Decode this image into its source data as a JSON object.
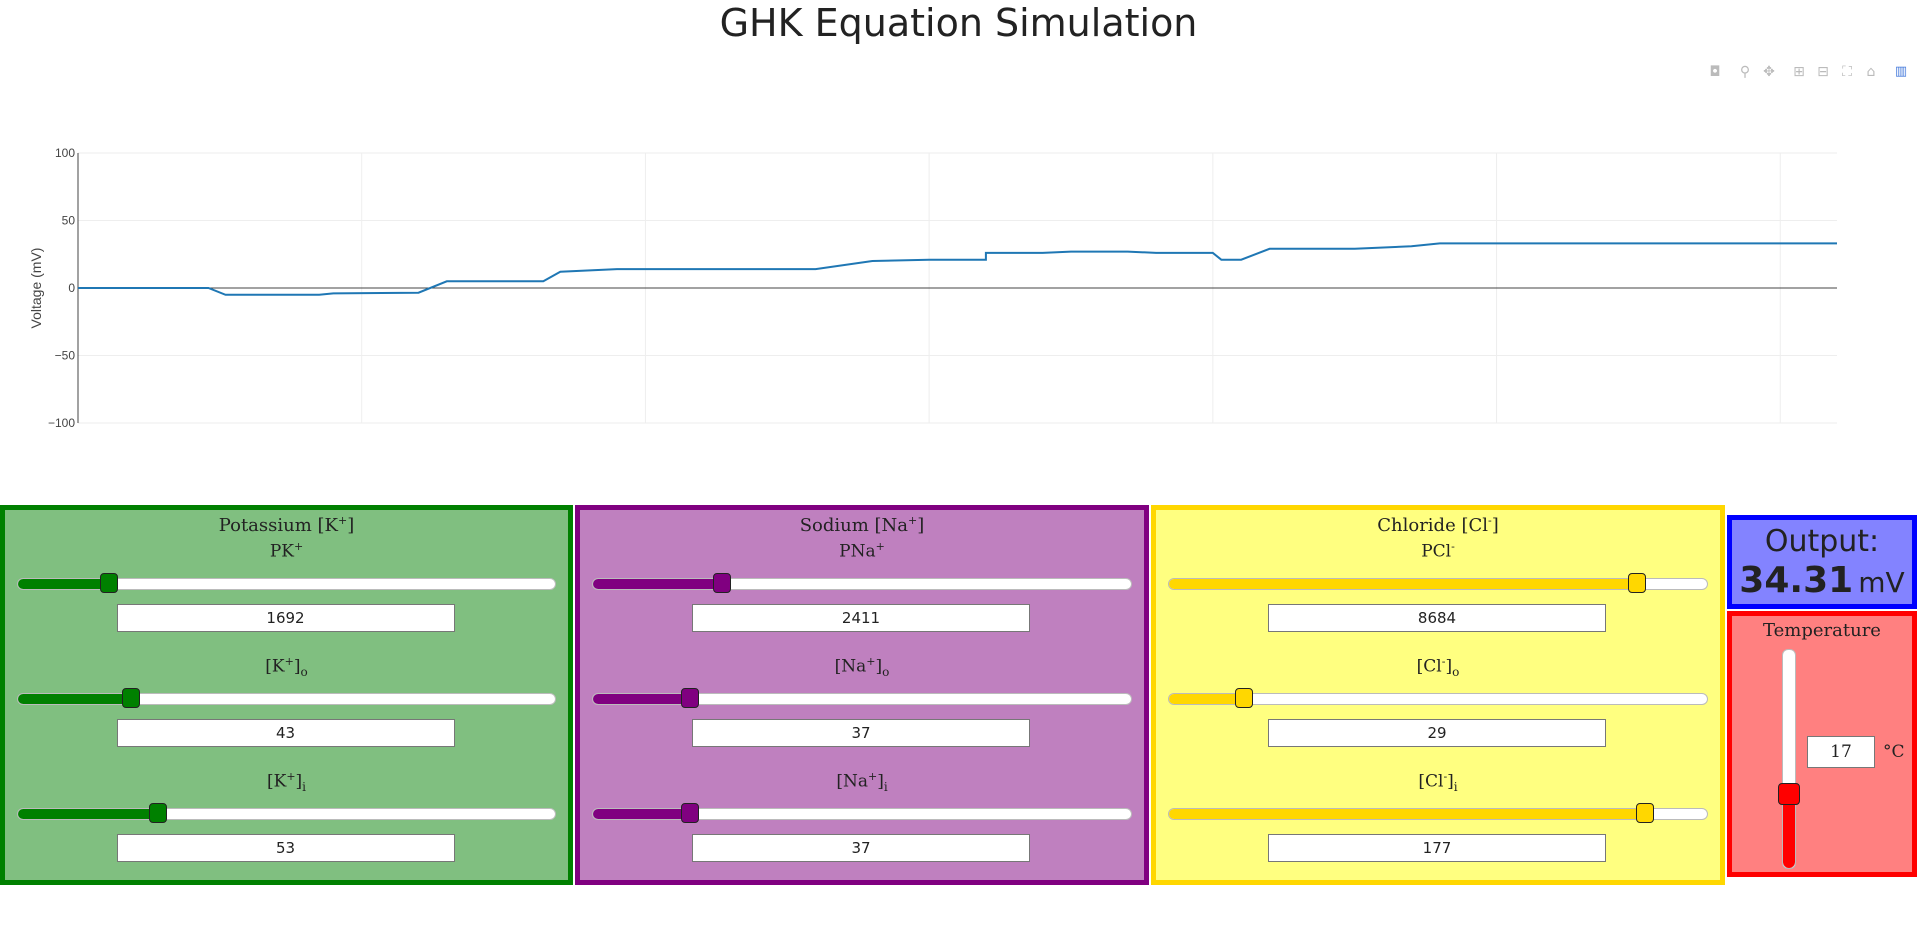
{
  "page": {
    "title": "GHK Equation Simulation"
  },
  "modebar": {
    "icons": [
      "camera-icon",
      "zoom-icon",
      "pan-icon",
      "zoom-in-icon",
      "zoom-out-icon",
      "autoscale-icon",
      "reset-axes-icon",
      "plotly-logo-icon"
    ]
  },
  "chart_data": {
    "type": "line",
    "ylabel": "Voltage (mV)",
    "ylim": [
      -100,
      100
    ],
    "yticks": [
      "100",
      "50",
      "0",
      "−50",
      "−100"
    ],
    "xlim": [
      0,
      62
    ],
    "grid": true,
    "color": "#1f77b4",
    "series": [
      {
        "x": [
          0,
          4.6,
          5.2,
          6,
          8.5,
          9,
          12,
          13,
          16.4,
          17,
          19,
          21,
          26,
          28,
          30,
          32,
          32,
          34,
          35,
          36,
          37,
          38,
          39,
          40,
          40.3,
          41,
          42,
          43,
          45,
          47,
          48,
          49,
          62
        ],
        "values": [
          0,
          0,
          -5,
          -5,
          -5,
          -4,
          -3.5,
          5,
          5,
          12,
          14,
          14,
          14,
          20,
          21,
          21,
          26,
          26,
          27,
          27,
          27,
          26,
          26,
          26,
          21,
          21,
          29,
          29,
          29,
          31,
          33,
          33,
          33
        ]
      }
    ]
  },
  "panels": {
    "potassium": {
      "title": "Potassium [K",
      "title_sup": "+",
      "title_end": "]",
      "color": "#008000",
      "bg": "#80bf80",
      "sliders": [
        {
          "label": "PK",
          "sup": "+",
          "sub": "",
          "value": "1692",
          "frac": 0.17
        },
        {
          "label": "[K",
          "sup": "+",
          "sub": "o",
          "value": "43",
          "frac": 0.21
        },
        {
          "label": "[K",
          "sup": "+",
          "sub": "i",
          "value": "53",
          "frac": 0.26
        }
      ]
    },
    "sodium": {
      "title": "Sodium [Na",
      "title_sup": "+",
      "title_end": "]",
      "color": "#800080",
      "bg": "#bf80bf",
      "sliders": [
        {
          "label": "PNa",
          "sup": "+",
          "sub": "",
          "value": "2411",
          "frac": 0.24
        },
        {
          "label": "[Na",
          "sup": "+",
          "sub": "o",
          "value": "37",
          "frac": 0.18
        },
        {
          "label": "[Na",
          "sup": "+",
          "sub": "i",
          "value": "37",
          "frac": 0.18
        }
      ]
    },
    "chloride": {
      "title": "Chloride [Cl",
      "title_sup": "-",
      "title_end": "]",
      "color": "#ffd700",
      "bg": "#ffff80",
      "sliders": [
        {
          "label": "PCl",
          "sup": "-",
          "sub": "",
          "value": "8684",
          "frac": 0.87
        },
        {
          "label": "[Cl",
          "sup": "-",
          "sub": "o",
          "value": "29",
          "frac": 0.14
        },
        {
          "label": "[Cl",
          "sup": "-",
          "sub": "i",
          "value": "177",
          "frac": 0.885
        }
      ]
    }
  },
  "output": {
    "label": "Output:",
    "value": "34.31",
    "unit": "mV"
  },
  "temperature": {
    "title": "Temperature",
    "value": "17",
    "unit": "°C",
    "frac": 0.34
  }
}
